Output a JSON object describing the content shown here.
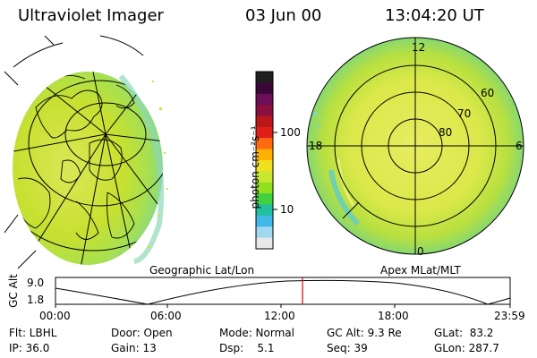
{
  "header": {
    "instrument": "Ultraviolet Imager",
    "date": "03 Jun 00",
    "time": "13:04:20 UT"
  },
  "colorbar": {
    "unit_label": "photon cm⁻²s⁻¹",
    "ticks": [
      "100",
      "10"
    ],
    "colors": [
      "#202020",
      "#3a0838",
      "#6a0f58",
      "#8a1040",
      "#b81818",
      "#e02018",
      "#ff6a10",
      "#ffb000",
      "#f0e020",
      "#c8e830",
      "#90e020",
      "#40d040",
      "#20c0a0",
      "#40b8e8",
      "#a0d8f0",
      "#e8e8e8"
    ]
  },
  "left_panel": {
    "label": "Geographic Lat/Lon"
  },
  "right_panel": {
    "label": "Apex MLat/MLT",
    "mlt_labels": {
      "top": "12",
      "left": "18",
      "right": "6",
      "bottom": "0"
    },
    "mlat_labels": [
      "60",
      "70",
      "80"
    ]
  },
  "timeline": {
    "ylabel": "GC Alt",
    "y_ticks": [
      "9.0",
      "1.8"
    ],
    "x_ticks": [
      "00:00",
      "06:00",
      "12:00",
      "18:00",
      "23:59"
    ],
    "current_marker_time": "13:04"
  },
  "status": {
    "filter": "Flt: LBHL",
    "ip": "IP: 36.0",
    "door": "Door: Open",
    "gain": "Gain: 13",
    "mode": "Mode: Normal",
    "dsp": "Dsp:    5.1",
    "gc_alt": "GC Alt: 9.3 Re",
    "seq": "Seq: 39",
    "glat": "GLat:  83.2",
    "glon": "GLon: 287.7"
  }
}
